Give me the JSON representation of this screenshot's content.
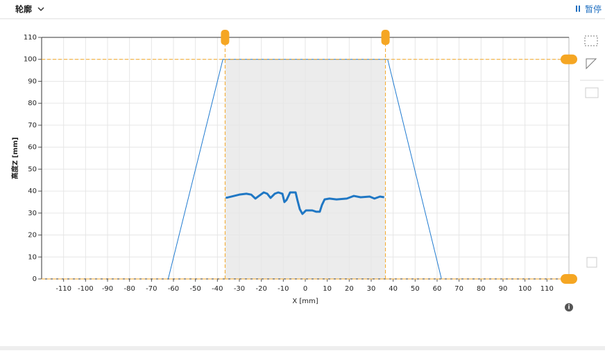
{
  "ui": {
    "menu_label": "轮廓",
    "pause_label": "暂停"
  },
  "chart_data": {
    "type": "line",
    "x_label": "X [mm]",
    "y_label": "高度Z [mm]",
    "xlim": [
      -120,
      120
    ],
    "ylim": [
      0,
      110
    ],
    "xticks": [
      -110,
      -100,
      -90,
      -80,
      -70,
      -60,
      -50,
      -40,
      -30,
      -20,
      -10,
      0,
      10,
      20,
      30,
      40,
      50,
      60,
      70,
      80,
      90,
      100,
      110
    ],
    "yticks": [
      0,
      10,
      20,
      30,
      40,
      50,
      60,
      70,
      80,
      90,
      100,
      110
    ],
    "grid": true,
    "region": {
      "x": [
        -36.5,
        36.5
      ],
      "y": [
        0,
        100
      ],
      "color": "#ececec",
      "edge_color": "#f5a623"
    },
    "series": [
      {
        "color": "#1f7ad0",
        "width": 1,
        "x": [
          -62.4,
          -37.5,
          37.5,
          62
        ],
        "values": [
          0,
          100,
          100,
          0
        ]
      },
      {
        "color": "#1f77c4",
        "width": 3,
        "x": [
          -36.2,
          -33.7,
          -30,
          -26.8,
          -24.6,
          -22.7,
          -21.1,
          -18.9,
          -17.3,
          -15.8,
          -13.9,
          -12.3,
          -10.4,
          -9.5,
          -8.5,
          -6.9,
          -4.4,
          -3.5,
          -2.5,
          -1.3,
          0.3,
          3.2,
          5,
          6.6,
          7.6,
          8.8,
          11,
          14.2,
          18.9,
          22.1,
          25.2,
          29.3,
          31.5,
          34,
          35.9
        ],
        "values": [
          36.9,
          37.5,
          38.4,
          38.8,
          38.4,
          36.6,
          37.8,
          39.4,
          38.8,
          36.9,
          38.8,
          39.4,
          38.8,
          35,
          36,
          39.4,
          39.4,
          35.6,
          31.8,
          29.6,
          31.2,
          31.2,
          30.6,
          30.6,
          33.7,
          36.2,
          36.6,
          36.2,
          36.6,
          37.8,
          37.2,
          37.5,
          36.6,
          37.5,
          37.2
        ]
      }
    ]
  }
}
